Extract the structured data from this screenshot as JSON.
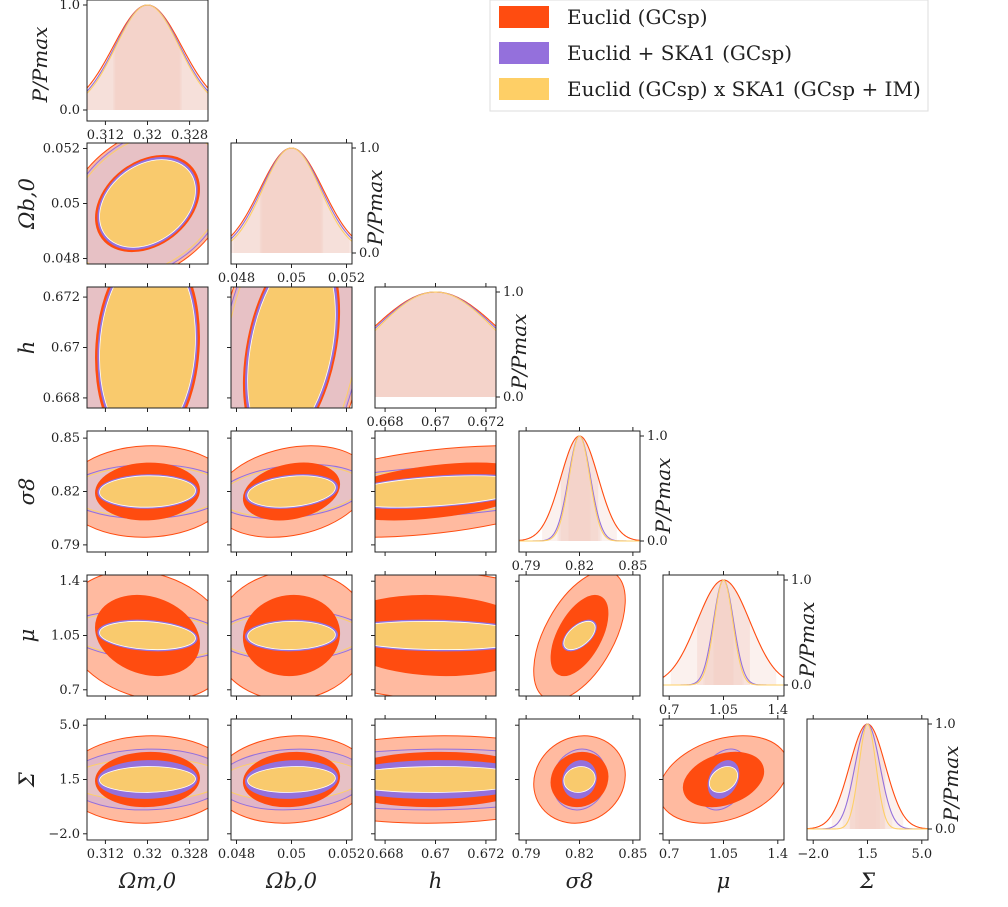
{
  "colors": {
    "euclid": "#ff4c10",
    "euclid_fill_outer": "#ffae8f",
    "ska": "#9470dc",
    "ska_fill_outer": "#c9b1e8",
    "im": "#fecf66",
    "im_fill_outer": "#f4d6c3",
    "marginal_fill": "#f3d1c8",
    "grid_line": "#222222"
  },
  "legend": {
    "entries": [
      {
        "label": "Euclid (GCsp)",
        "color": "#ff4c10"
      },
      {
        "label": "Euclid + SKA1 (GCsp)",
        "color": "#9470dc"
      },
      {
        "label": "Euclid (GCsp) x SKA1 (GCsp + IM)",
        "color": "#fecf66"
      }
    ],
    "position": "top-right"
  },
  "chart_data": {
    "type": "triangle",
    "title": "",
    "fiducial": [
      0.32,
      0.05,
      0.67,
      0.82,
      1.05,
      1.5
    ],
    "parameters": [
      {
        "name": "Omega_m0",
        "label": "Ωm,0",
        "ticks": [
          "0.312",
          "0.32",
          "0.328"
        ],
        "tick_values": [
          0.312,
          0.32,
          0.328
        ],
        "range": [
          0.3085,
          0.3315
        ]
      },
      {
        "name": "Omega_b0",
        "label": "Ωb,0",
        "ticks": [
          "0.048",
          "0.05",
          "0.052"
        ],
        "tick_values": [
          0.048,
          0.05,
          0.052
        ],
        "range": [
          0.0478,
          0.0522
        ]
      },
      {
        "name": "h",
        "label": "h",
        "ticks": [
          "0.668",
          "0.67",
          "0.672"
        ],
        "tick_values": [
          0.668,
          0.67,
          0.672
        ],
        "range": [
          0.6676,
          0.6724
        ]
      },
      {
        "name": "sigma8",
        "label": "σ8",
        "ticks": [
          "0.79",
          "0.82",
          "0.85"
        ],
        "tick_values": [
          0.79,
          0.82,
          0.85
        ],
        "range": [
          0.786,
          0.854
        ]
      },
      {
        "name": "mu",
        "label": "μ",
        "ticks": [
          "0.7",
          "1.05",
          "1.4"
        ],
        "tick_values": [
          0.7,
          1.05,
          1.4
        ],
        "range": [
          0.66,
          1.44
        ]
      },
      {
        "name": "Sigma",
        "label": "Σ",
        "ticks": [
          "−2.0",
          "1.5",
          "5.0"
        ],
        "tick_values": [
          -2.0,
          1.5,
          5.0
        ],
        "range": [
          -2.4,
          5.4
        ]
      }
    ],
    "marginal_ylabel": "P/Pmax",
    "marginal_ticks": [
      "0.0",
      "1.0"
    ],
    "series": [
      {
        "name": "Euclid (GCsp)",
        "sigmas": [
          0.0065,
          0.00115,
          0.0027,
          0.0105,
          0.17,
          1.15
        ]
      },
      {
        "name": "Euclid + SKA1 (GCsp)",
        "sigmas": [
          0.0062,
          0.0011,
          0.0026,
          0.0062,
          0.065,
          0.8
        ]
      },
      {
        "name": "Euclid (GCsp) x SKA1 (GCsp + IM)",
        "sigmas": [
          0.006,
          0.00105,
          0.0025,
          0.0058,
          0.06,
          0.55
        ]
      }
    ],
    "correlations": [
      [
        1,
        0.3,
        0.1,
        0.05,
        -0.2,
        0.05
      ],
      [
        0.3,
        1,
        0.35,
        0.25,
        0.05,
        0.1
      ],
      [
        0.1,
        0.35,
        1,
        0.4,
        -0.1,
        0.05
      ],
      [
        0.05,
        0.25,
        0.4,
        1,
        0.55,
        0.1
      ],
      [
        -0.2,
        0.05,
        -0.1,
        0.55,
        1,
        0.3
      ],
      [
        0.05,
        0.1,
        0.05,
        0.1,
        0.3,
        1
      ]
    ]
  }
}
